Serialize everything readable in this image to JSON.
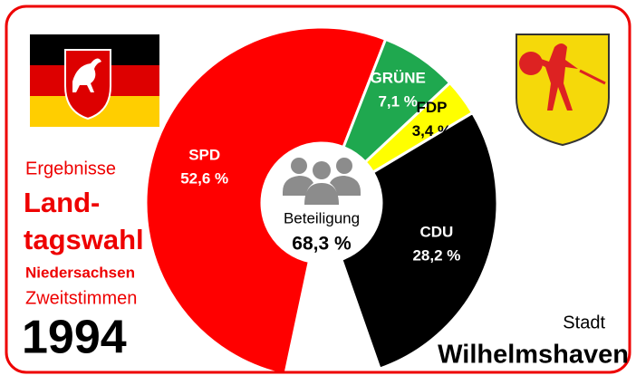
{
  "chart_data": {
    "type": "donut",
    "categories": [
      "SPD",
      "GRÜNE",
      "FDP",
      "CDU"
    ],
    "values": [
      52.6,
      7.1,
      3.4,
      28.2
    ],
    "value_labels": [
      "52,6 %",
      "7,1 %",
      "3,4 %",
      "28,2 %"
    ],
    "colors": [
      "#ff0000",
      "#1fa84f",
      "#ffff00",
      "#000000"
    ],
    "label_colors": [
      "#ffffff",
      "#ffffff",
      "#000000",
      "#ffffff"
    ],
    "center_label": "Beteiligung",
    "center_value": 68.3,
    "center_value_label": "68,3 %",
    "title_lines": [
      "Ergebnisse",
      "Land-",
      "tagswahl",
      "Niedersachsen",
      "Zweitstimmen"
    ],
    "year": "1994",
    "place_prefix": "Stadt",
    "place": "Wilhelmshaven"
  }
}
